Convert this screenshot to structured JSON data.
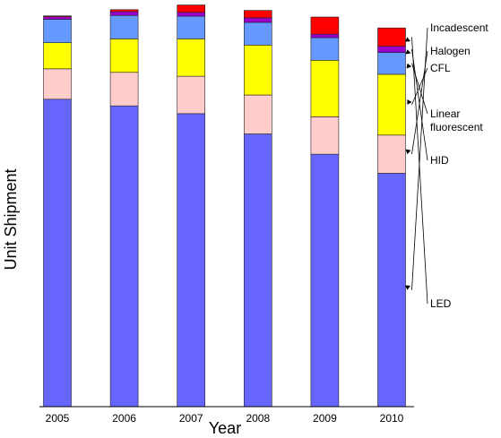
{
  "chart_data": {
    "type": "bar",
    "stacked": true,
    "title": "",
    "xlabel": "Year",
    "ylabel": "Unit Shipment",
    "categories": [
      "2005",
      "2006",
      "2007",
      "2008",
      "2009",
      "2010"
    ],
    "ylim": [
      0,
      100
    ],
    "grid": false,
    "legend": "right, annotation arrows pointing at 2010 bar",
    "series": [
      {
        "name": "Incadescent",
        "color": "#6666ff",
        "values": [
          78.9,
          77.2,
          75.2,
          70.0,
          64.8,
          59.9
        ]
      },
      {
        "name": "Halogen",
        "color": "#ffcccc",
        "values": [
          7.8,
          8.6,
          9.6,
          10.0,
          9.6,
          9.8
        ]
      },
      {
        "name": "CFL",
        "color": "#ffff00",
        "values": [
          6.7,
          8.6,
          9.6,
          12.8,
          14.5,
          15.6
        ]
      },
      {
        "name": "Linear\nfluorescent",
        "color": "#6699ff",
        "values": [
          6.0,
          6.0,
          5.8,
          5.8,
          5.8,
          5.6
        ]
      },
      {
        "name": "HID",
        "color": "#9900cc",
        "values": [
          0.7,
          1.0,
          1.0,
          1.2,
          0.9,
          1.6
        ]
      },
      {
        "name": "LED",
        "color": "#ff0000",
        "values": [
          0.2,
          0.5,
          1.9,
          1.9,
          4.4,
          4.7
        ]
      }
    ]
  }
}
